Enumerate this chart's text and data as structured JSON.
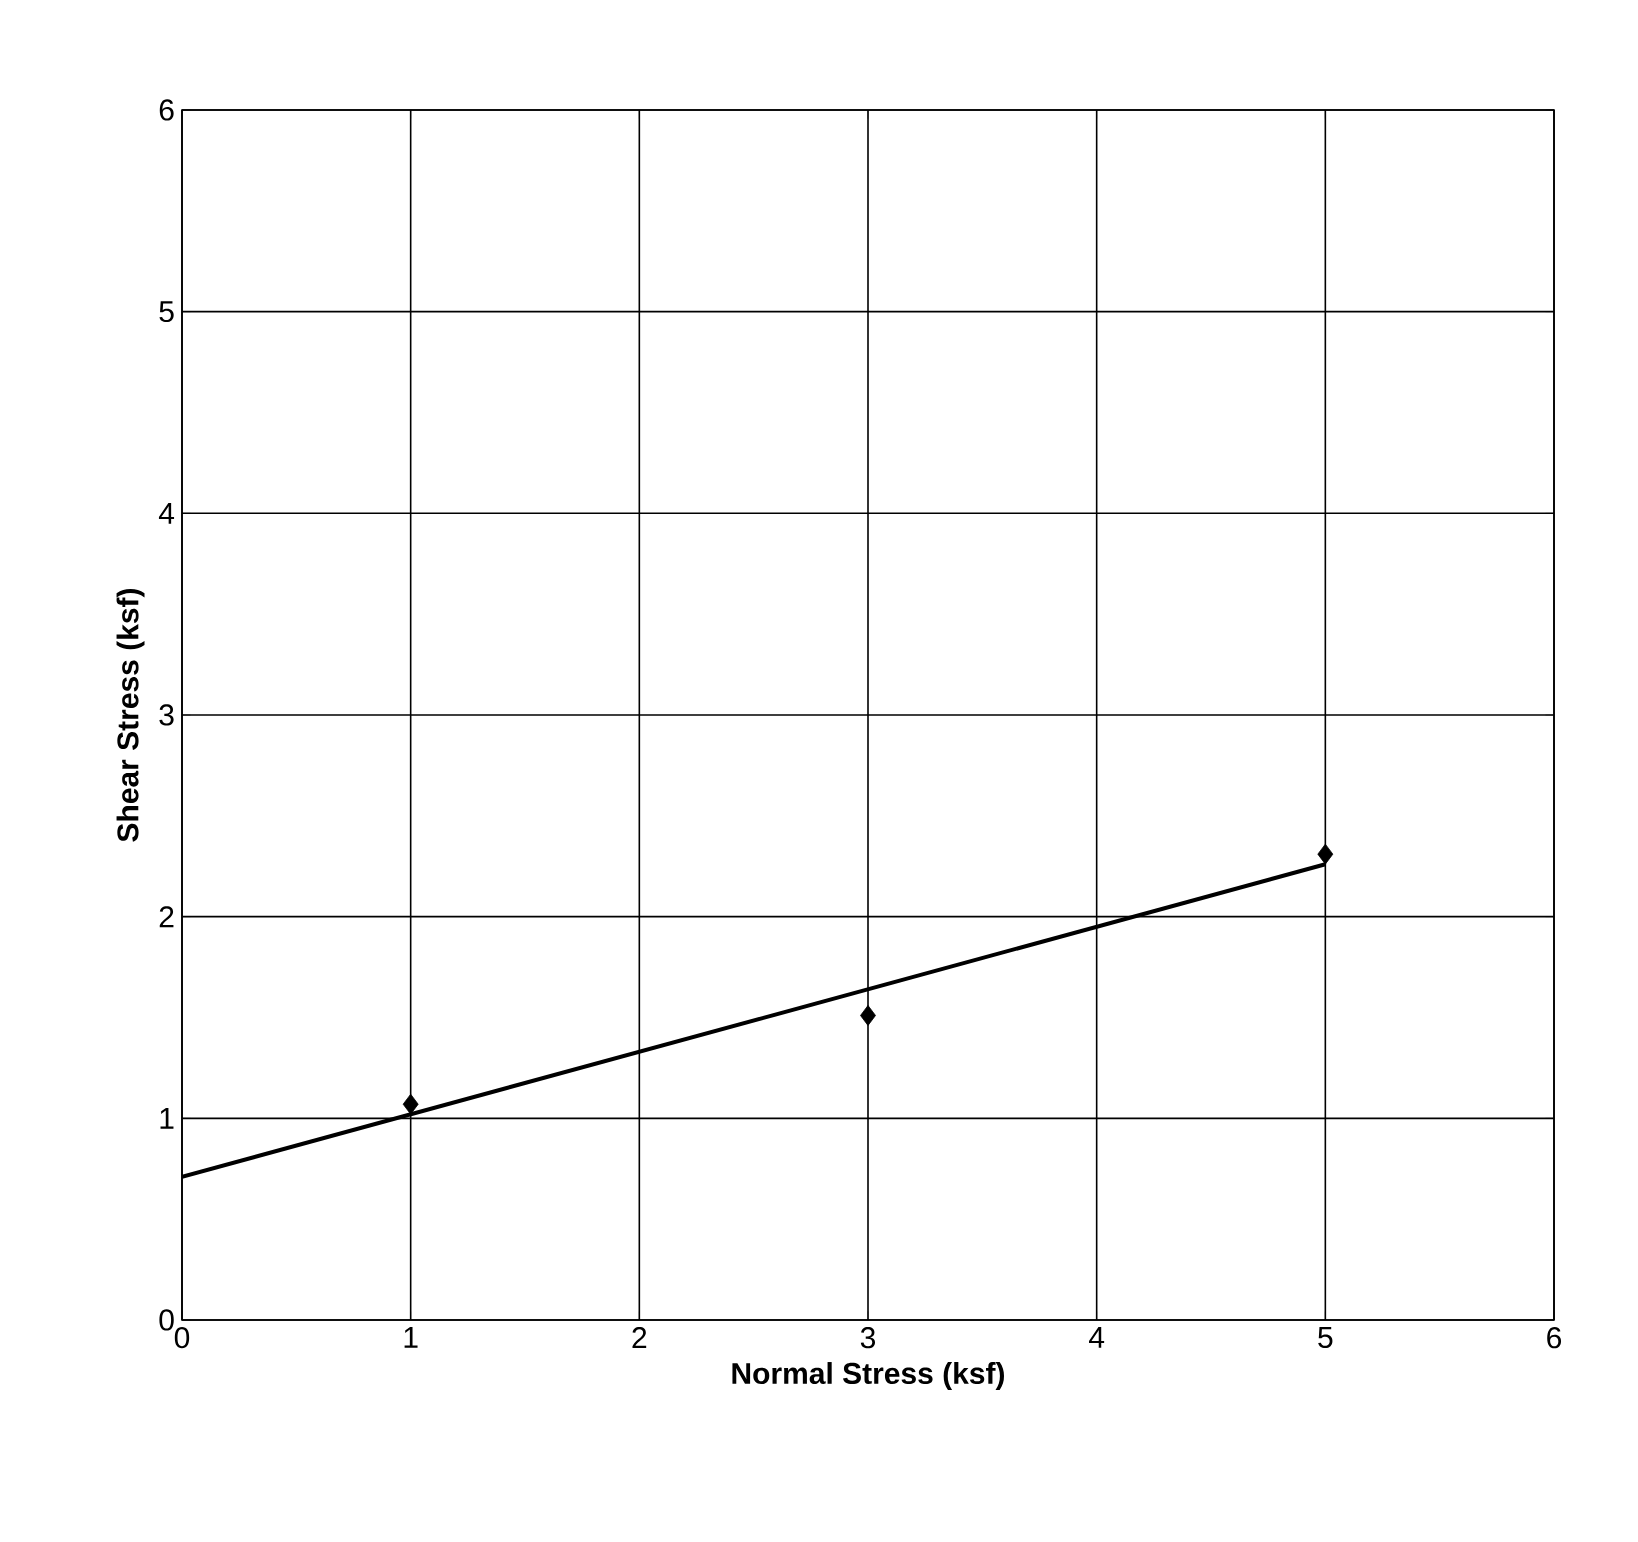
{
  "chart_data": {
    "type": "scatter",
    "xlabel": "Normal Stress (ksf)",
    "ylabel": "Shear Stress (ksf)",
    "xlim": [
      0,
      6
    ],
    "ylim": [
      0,
      6
    ],
    "xticks": [
      0,
      1,
      2,
      3,
      4,
      5,
      6
    ],
    "yticks": [
      0,
      1,
      2,
      3,
      4,
      5,
      6
    ],
    "grid": true,
    "series": [
      {
        "color": "#000000",
        "marker": "diamond",
        "x": [
          1,
          3,
          5
        ],
        "values": [
          1.07,
          1.51,
          2.31
        ]
      },
      {
        "type": "line",
        "color": "#000000",
        "marker": "none",
        "line_style": "solid",
        "x": [
          0,
          5
        ],
        "values": [
          0.71,
          2.26
        ]
      }
    ]
  }
}
